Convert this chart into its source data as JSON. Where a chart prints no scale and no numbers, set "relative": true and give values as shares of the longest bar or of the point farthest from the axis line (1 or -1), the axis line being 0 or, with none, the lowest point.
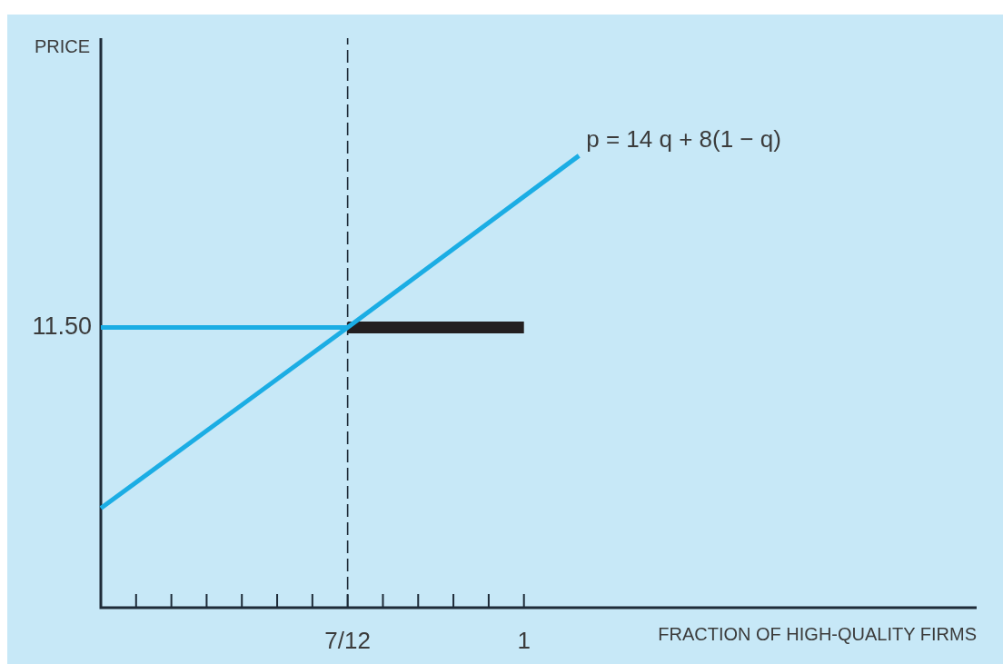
{
  "chart_data": {
    "type": "line",
    "xlabel": "FRACTION OF HIGH-QUALITY FIRMS",
    "relative": true,
    "legend": false,
    "xlim": [
      0,
      2.07
    ],
    "xticks": [
      {
        "value": 0.0833,
        "label": null
      },
      {
        "value": 0.1667,
        "label": null
      },
      {
        "value": 0.25,
        "label": null
      },
      {
        "value": 0.3333,
        "label": null
      },
      {
        "value": 0.4167,
        "label": null
      },
      {
        "value": 0.5,
        "label": null
      },
      {
        "value": 0.5833,
        "label": "7/12"
      },
      {
        "value": 0.6667,
        "label": null
      },
      {
        "value": 0.75,
        "label": null
      },
      {
        "value": 0.8333,
        "label": null
      },
      {
        "value": 0.9167,
        "label": null
      },
      1
    ],
    "series": [
      {
        "name": "p = 14 q + 8(1 − q)",
        "color": "#1badE4",
        "x": [
          0,
          0.5833,
          1.13
        ],
        "values": [
          0.22,
          0.62,
          1
        ]
      },
      {
        "color": "#1badE4",
        "x": [
          0,
          0.5833
        ],
        "values": [
          0.62,
          0.62
        ]
      },
      {
        "color": "#231f20",
        "x": [
          0.5833,
          1
        ],
        "values": [
          0.62,
          0.62
        ]
      }
    ],
    "ref_lines": [
      {
        "axis": "x",
        "value": 0.5833,
        "color": "#1e2b38",
        "line_style": "dashed"
      }
    ],
    "annotations": [
      "PRICE",
      {
        "text": "11.50",
        "x": 0,
        "y": 0.62
      }
    ]
  }
}
